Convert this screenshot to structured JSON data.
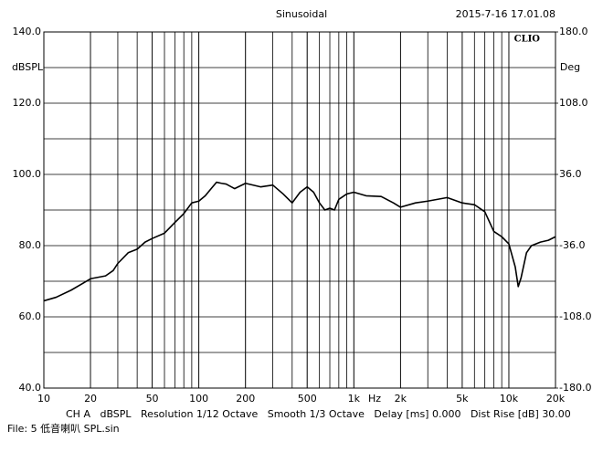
{
  "chart_data": {
    "type": "line",
    "title": "Sinusoidal",
    "timestamp": "2015-7-16 17.01.08",
    "brand": "CLIO",
    "xlabel": "Hz",
    "ylabel": "dBSPL",
    "y2label": "Deg",
    "footer": "CH A   dBSPL   Resolution 1/12 Octave   Smooth 1/3 Octave   Delay [ms] 0.000   Dist Rise [dB] 30.00",
    "file": "File: 5 低音喇叭 SPL.sin",
    "log_x": true,
    "grid": true,
    "minor_grid": true,
    "xlim": [
      10,
      20000
    ],
    "xticks": [
      10,
      20,
      50,
      100,
      200,
      500,
      {
        "value": 1000,
        "label": "1k"
      },
      {
        "value": 2000,
        "label": "2k"
      },
      {
        "value": 5000,
        "label": "5k"
      },
      {
        "value": 10000,
        "label": "10k"
      },
      {
        "value": 20000,
        "label": "20k"
      }
    ],
    "ylim": [
      40,
      140
    ],
    "yticks": [
      {
        "value": 40,
        "label": "40.0"
      },
      {
        "value": 60,
        "label": "60.0"
      },
      {
        "value": 80,
        "label": "80.0"
      },
      {
        "value": 100,
        "label": "100.0"
      },
      {
        "value": 120,
        "label": "120.0"
      },
      {
        "value": 140,
        "label": "140.0"
      }
    ],
    "y2lim": [
      -180,
      180
    ],
    "y2ticks": [
      {
        "value": -180,
        "label": "-180.0"
      },
      {
        "value": -108,
        "label": "-108.0"
      },
      {
        "value": -36,
        "label": "-36.0"
      },
      {
        "value": 36,
        "label": "36.0"
      },
      {
        "value": 108,
        "label": "108.0"
      },
      {
        "value": 180,
        "label": "180.0"
      }
    ],
    "x": [
      10,
      12,
      15,
      18,
      20,
      25,
      28,
      30,
      35,
      40,
      45,
      50,
      60,
      70,
      80,
      90,
      100,
      110,
      120,
      130,
      140,
      150,
      170,
      200,
      250,
      300,
      350,
      400,
      450,
      500,
      550,
      600,
      650,
      700,
      750,
      800,
      900,
      1000,
      1200,
      1500,
      1800,
      2000,
      2500,
      3000,
      4000,
      5000,
      6000,
      7000,
      8000,
      9000,
      10000,
      11000,
      11500,
      12000,
      13000,
      14000,
      16000,
      18000,
      20000
    ],
    "series": [
      {
        "color": "#000000",
        "values": [
          64.5,
          65.5,
          67.5,
          69.5,
          70.7,
          71.5,
          73,
          75,
          78,
          79,
          81,
          82,
          83.5,
          86.5,
          89,
          92,
          92.5,
          94,
          96,
          97.8,
          97.5,
          97.3,
          96,
          97.5,
          96.5,
          97,
          94.5,
          92,
          95,
          96.5,
          95,
          92,
          90,
          90.5,
          90,
          93,
          94.5,
          95,
          94,
          93.8,
          92,
          90.8,
          92,
          92.5,
          93.5,
          92,
          91.5,
          89.5,
          84,
          82.5,
          80.5,
          74,
          68.5,
          71,
          78,
          80,
          81,
          81.5,
          82.5
        ]
      }
    ]
  }
}
